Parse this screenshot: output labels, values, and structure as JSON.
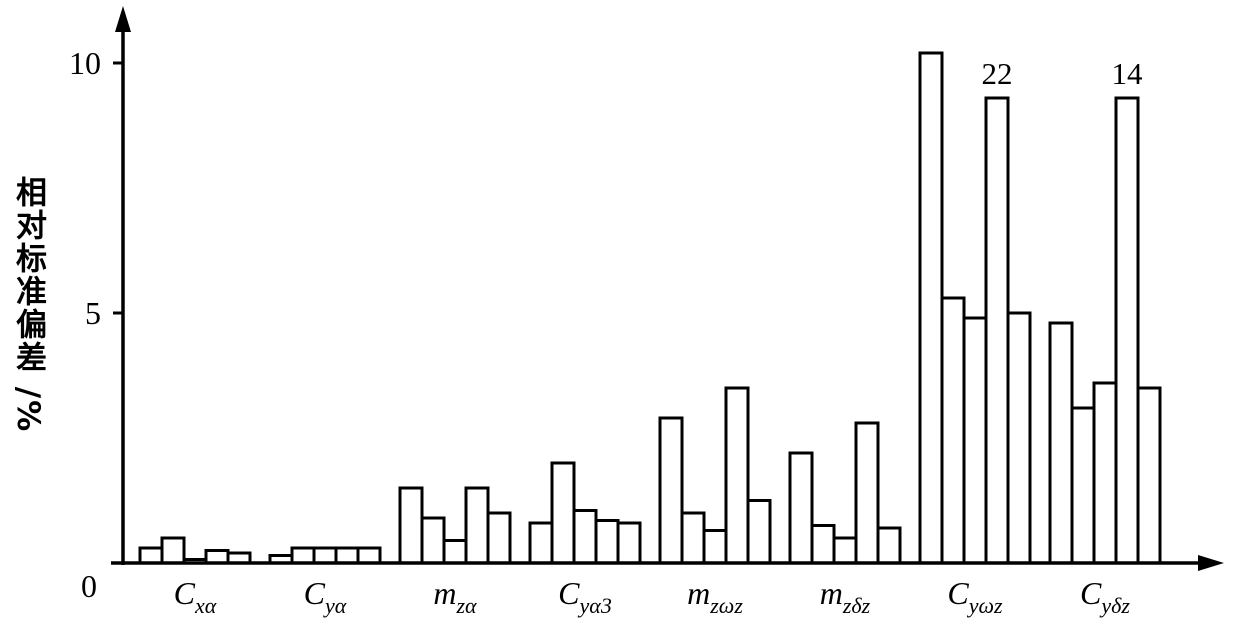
{
  "chart_data": {
    "type": "bar",
    "title": "",
    "ylabel": "相对标准偏差 /%",
    "xlabel": "",
    "ylim": [
      0,
      11.2
    ],
    "yticks": [
      0,
      5,
      10
    ],
    "grid": false,
    "legend": "none",
    "bar_fill": "#ffffff",
    "bar_stroke": "#000000",
    "axis_color": "#000000",
    "bars_per_group": 5,
    "groups": [
      {
        "label_base": "C",
        "label_sub": "xα",
        "values": [
          0.3,
          0.5,
          0.07,
          0.25,
          0.2
        ]
      },
      {
        "label_base": "C",
        "label_sub": "yα",
        "values": [
          0.15,
          0.3,
          0.3,
          0.3,
          0.3
        ]
      },
      {
        "label_base": "m",
        "label_sub": "zα",
        "values": [
          1.5,
          0.9,
          0.45,
          1.5,
          1.0
        ]
      },
      {
        "label_base": "C",
        "label_sub": "yα3",
        "values": [
          0.8,
          2.0,
          1.05,
          0.85,
          0.8
        ]
      },
      {
        "label_base": "m",
        "label_sub": "zωz",
        "values": [
          2.9,
          1.0,
          0.65,
          3.5,
          1.25
        ]
      },
      {
        "label_base": "m",
        "label_sub": "zδz",
        "values": [
          2.2,
          0.75,
          0.5,
          2.8,
          0.7
        ]
      },
      {
        "label_base": "C",
        "label_sub": "yωz",
        "values": [
          10.2,
          5.3,
          4.9,
          9.3,
          5.0
        ],
        "annotations": [
          {
            "bar": 3,
            "text": "22"
          }
        ]
      },
      {
        "label_base": "C",
        "label_sub": "yδz",
        "values": [
          4.8,
          3.1,
          3.6,
          9.3,
          3.5
        ],
        "annotations": [
          {
            "bar": 3,
            "text": "14"
          }
        ]
      }
    ]
  }
}
